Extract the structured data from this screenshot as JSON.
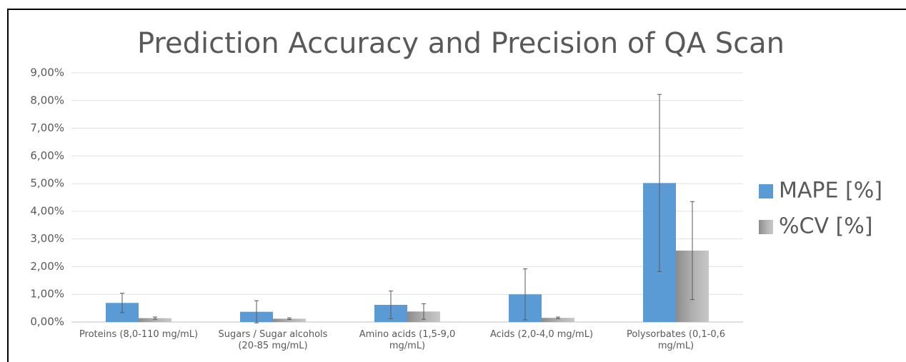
{
  "chart_data": {
    "type": "bar",
    "title": "Prediction Accuracy and Precision of QA Scan",
    "categories": [
      "Proteins (8,0-110 mg/mL)",
      "Sugars / Sugar alcohols (20-85 mg/mL)",
      "Amino acids (1,5-9,0 mg/mL)",
      "Acids (2,0-4,0 mg/mL)",
      "Polysorbates (0,1-0,6 mg/mL)"
    ],
    "series": [
      {
        "name": "MAPE [%]",
        "color": "#5b9bd5",
        "values": [
          0.69,
          0.37,
          0.62,
          1.0,
          5.02
        ],
        "errors": [
          0.35,
          0.4,
          0.5,
          0.92,
          3.2
        ]
      },
      {
        "name": "%CV [%]",
        "color": "#a5a5a5",
        "values": [
          0.14,
          0.12,
          0.38,
          0.15,
          2.58
        ],
        "errors": [
          0.04,
          0.03,
          0.28,
          0.03,
          1.77
        ]
      }
    ],
    "ylim": [
      0,
      9
    ],
    "yticks": [
      {
        "value": 0,
        "label": "0,00%"
      },
      {
        "value": 1,
        "label": "1,00%"
      },
      {
        "value": 2,
        "label": "2,00%"
      },
      {
        "value": 3,
        "label": "3,00%"
      },
      {
        "value": 4,
        "label": "4,00%"
      },
      {
        "value": 5,
        "label": "5,00%"
      },
      {
        "value": 6,
        "label": "6,00%"
      },
      {
        "value": 7,
        "label": "7,00%"
      },
      {
        "value": 8,
        "label": "8,00%"
      },
      {
        "value": 9,
        "label": "9,00%"
      }
    ],
    "grid": true,
    "legend": "right"
  }
}
